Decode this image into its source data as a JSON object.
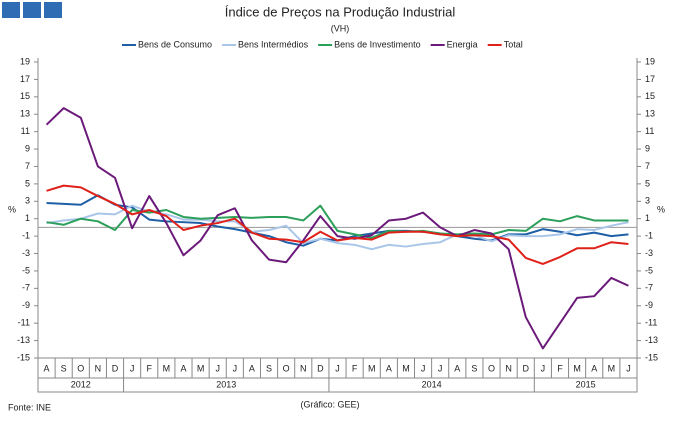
{
  "chart_data": {
    "type": "line",
    "title": "Índice de Preços na Produção Industrial",
    "subtitle": "(VH)",
    "y_label": "%",
    "y2_label": "%",
    "source": "Fonte: INE",
    "note": "(Gráfico: GEE)",
    "groups": [
      {
        "label": "2012",
        "categories": [
          "A",
          "S",
          "O",
          "N",
          "D"
        ]
      },
      {
        "label": "2013",
        "categories": [
          "J",
          "F",
          "M",
          "A",
          "M",
          "J",
          "J",
          "A",
          "S",
          "O",
          "N",
          "D"
        ]
      },
      {
        "label": "2014",
        "categories": [
          "J",
          "F",
          "M",
          "A",
          "M",
          "J",
          "J",
          "A",
          "S",
          "O",
          "N",
          "D"
        ]
      },
      {
        "label": "2015",
        "categories": [
          "J",
          "F",
          "M",
          "A",
          "M",
          "J"
        ]
      }
    ],
    "series": [
      {
        "name": "Bens de Consumo",
        "color": "#1f5fa6",
        "values": [
          2.8,
          2.7,
          2.6,
          3.7,
          2.6,
          2.3,
          0.9,
          0.7,
          0.6,
          0.5,
          0.1,
          -0.2,
          -0.6,
          -1.0,
          -1.7,
          -2.1,
          -1.3,
          -1.5,
          -1.0,
          -0.7,
          -0.4,
          -0.4,
          -0.5,
          -0.7,
          -1.0,
          -1.3,
          -1.5,
          -0.8,
          -0.8,
          -0.2,
          -0.5,
          -0.9,
          -0.6,
          -1.0,
          -0.8
        ]
      },
      {
        "name": "Bens Intermédios",
        "color": "#a9c6e8",
        "values": [
          0.5,
          0.8,
          1.0,
          1.6,
          1.5,
          2.5,
          1.8,
          1.5,
          0.9,
          0.9,
          0.7,
          0.7,
          -0.5,
          -0.3,
          0.2,
          -1.8,
          -1.3,
          -1.8,
          -2.0,
          -2.5,
          -2.0,
          -2.2,
          -1.9,
          -1.7,
          -0.8,
          -0.9,
          -1.6,
          -0.9,
          -1.0,
          -1.0,
          -0.8,
          -0.2,
          -0.3,
          0.2,
          0.6
        ]
      },
      {
        "name": "Bens de Investimento",
        "color": "#2ca05a",
        "values": [
          0.6,
          0.3,
          1.0,
          0.7,
          -0.3,
          2.0,
          1.7,
          2.0,
          1.2,
          1.0,
          1.1,
          1.2,
          1.1,
          1.2,
          1.2,
          0.8,
          2.5,
          -0.4,
          -0.8,
          -1.2,
          -0.4,
          -0.5,
          -0.4,
          -0.7,
          -0.8,
          -0.7,
          -0.8,
          -0.3,
          -0.4,
          1.0,
          0.7,
          1.3,
          0.8,
          0.8,
          0.8
        ]
      },
      {
        "name": "Energia",
        "color": "#6b1a7a",
        "values": [
          11.8,
          13.7,
          12.6,
          7.0,
          5.7,
          -0.1,
          3.6,
          0.5,
          -3.2,
          -1.5,
          1.4,
          2.2,
          -1.5,
          -3.7,
          -4.0,
          -1.5,
          1.3,
          -1.0,
          -1.3,
          -0.9,
          0.8,
          1.0,
          1.7,
          0.0,
          -1.0,
          -0.3,
          -0.7,
          -2.5,
          -10.3,
          -13.9,
          -11.0,
          -8.1,
          -7.9,
          -5.8,
          -6.7
        ]
      },
      {
        "name": "Total",
        "color": "#e0211a",
        "values": [
          4.2,
          4.8,
          4.6,
          3.6,
          2.7,
          1.5,
          2.0,
          1.3,
          -0.3,
          0.2,
          0.5,
          1.0,
          -0.6,
          -1.3,
          -1.4,
          -1.7,
          -0.5,
          -1.5,
          -1.2,
          -1.4,
          -0.6,
          -0.5,
          -0.5,
          -0.8,
          -1.0,
          -0.9,
          -1.0,
          -1.4,
          -3.5,
          -4.2,
          -3.4,
          -2.4,
          -2.4,
          -1.7,
          -1.9
        ]
      }
    ],
    "ylim": [
      -15,
      19
    ],
    "yticks": [
      19,
      17,
      15,
      13,
      11,
      9,
      7,
      5,
      3,
      1,
      -1,
      -3,
      -5,
      -7,
      -9,
      -11,
      -13,
      -15
    ],
    "y2lim": [
      -15,
      19
    ],
    "y2ticks": [
      19,
      17,
      15,
      13,
      11,
      9,
      7,
      5,
      3,
      1,
      -1,
      -3,
      -5,
      -7,
      -9,
      -11,
      -13,
      -15
    ]
  }
}
